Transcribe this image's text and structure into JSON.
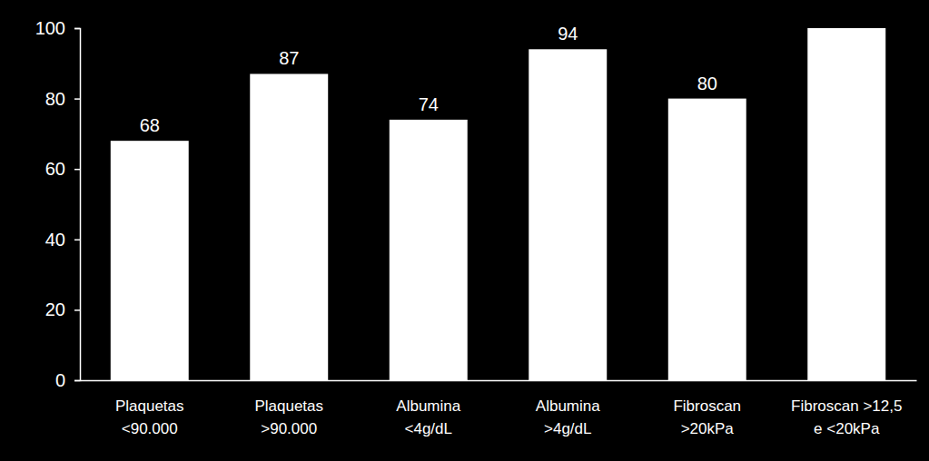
{
  "chart_data": {
    "type": "bar",
    "categories": [
      "Plaquetas\n<90.000",
      "Plaquetas\n>90.000",
      "Albumina\n<4g/dL",
      "Albumina\n>4g/dL",
      "Fibroscan\n>20kPa",
      "Fibroscan >12,5\ne <20kPa"
    ],
    "values": [
      68,
      87,
      74,
      94,
      80,
      100
    ],
    "value_labels": [
      "68",
      "87",
      "74",
      "94",
      "80",
      null
    ],
    "color": "#ffffff",
    "ylim": [
      0,
      100
    ],
    "yticks": [
      0,
      20,
      40,
      60,
      80,
      100
    ],
    "grid": false
  }
}
